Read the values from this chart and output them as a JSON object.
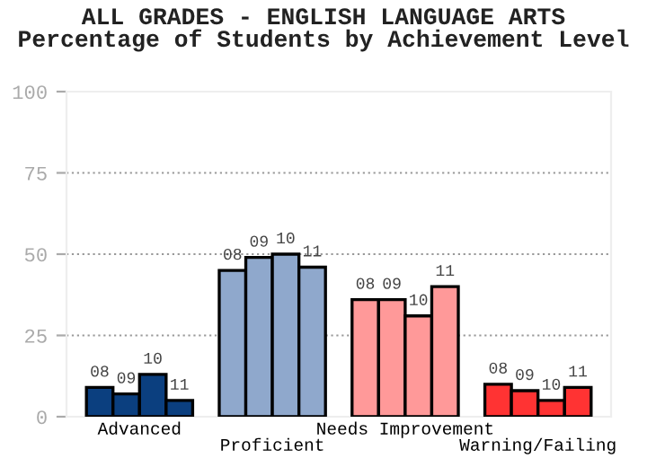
{
  "chart_data": {
    "type": "bar",
    "title": "ALL GRADES - ENGLISH LANGUAGE ARTS\nPercentage of Students by Achievement Level",
    "categories": [
      "Advanced",
      "Proficient",
      "Needs Improvement",
      "Warning/Failing"
    ],
    "series": [
      {
        "name": "08",
        "colors": [
          "#0b3f7f",
          "#8fa8cc",
          "#ff9999",
          "#ff3333"
        ],
        "values": [
          9,
          45,
          36,
          10
        ]
      },
      {
        "name": "09",
        "colors": [
          "#0b3f7f",
          "#8fa8cc",
          "#ff9999",
          "#ff3333"
        ],
        "values": [
          7,
          49,
          36,
          8
        ]
      },
      {
        "name": "10",
        "colors": [
          "#0b3f7f",
          "#8fa8cc",
          "#ff9999",
          "#ff3333"
        ],
        "values": [
          13,
          50,
          31,
          5
        ]
      },
      {
        "name": "11",
        "colors": [
          "#0b3f7f",
          "#8fa8cc",
          "#ff9999",
          "#ff3333"
        ],
        "values": [
          5,
          46,
          40,
          9
        ]
      }
    ],
    "ylim": [
      0,
      100
    ],
    "yticks": [
      0,
      25,
      50,
      75,
      100
    ],
    "grid": "y"
  }
}
